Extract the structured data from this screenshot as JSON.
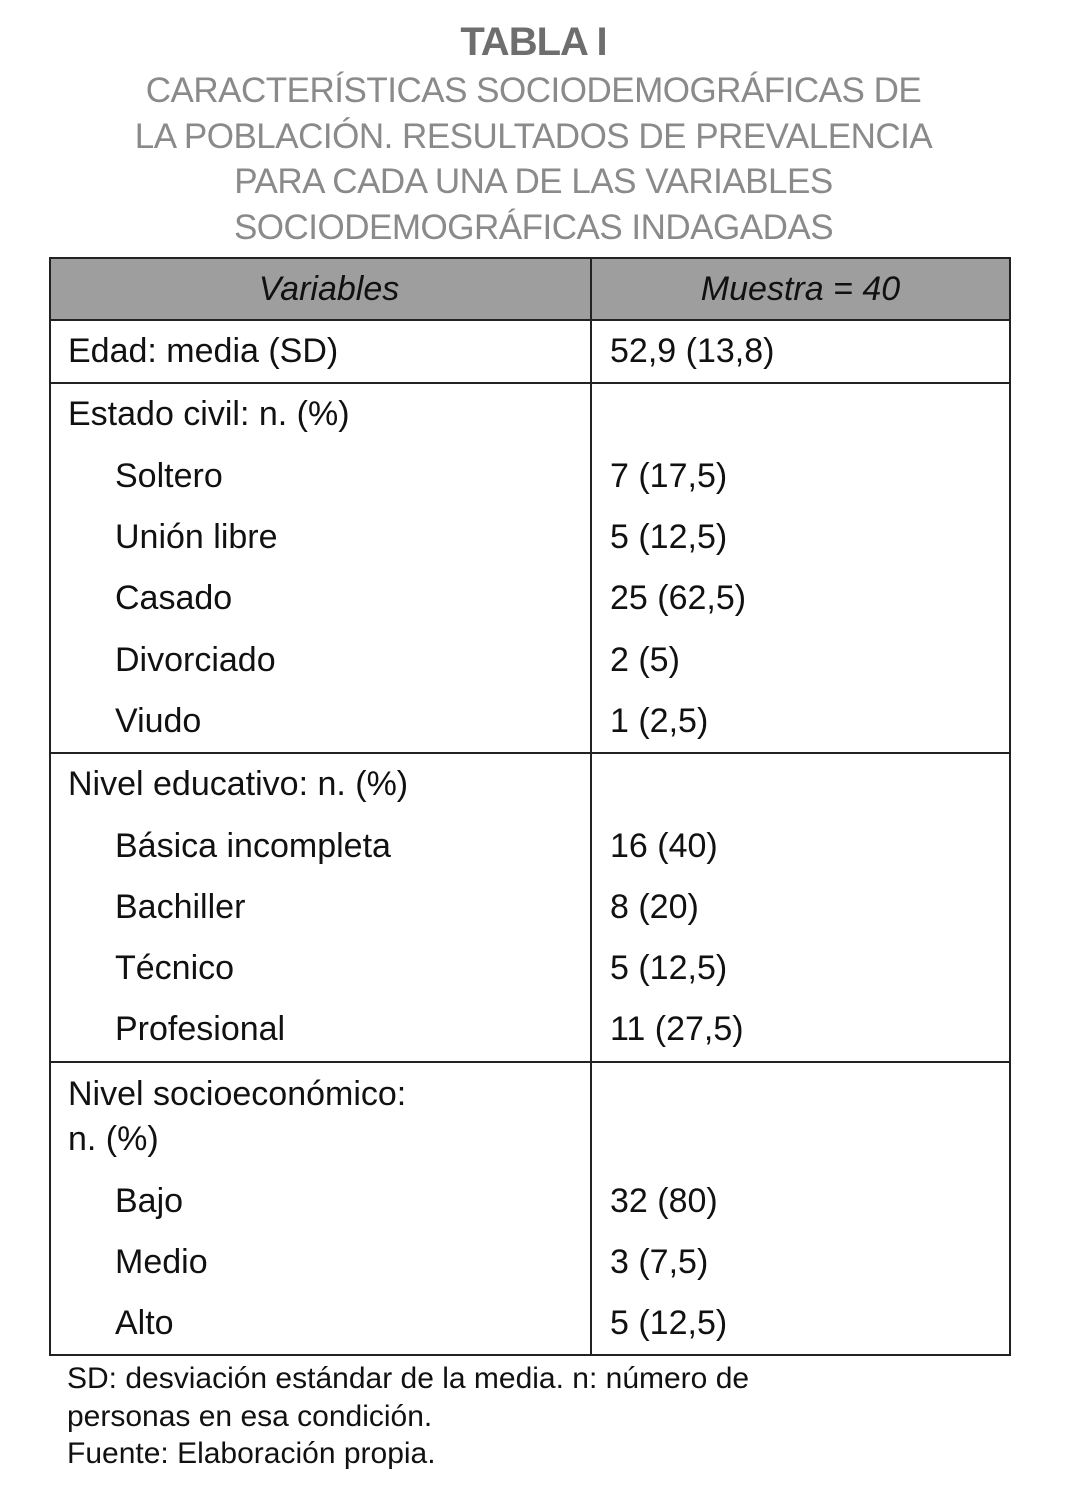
{
  "title": "TABLA I",
  "subtitle_lines": [
    "CARACTERÍSTICAS SOCIODEMOGRÁFICAS DE",
    "LA POBLACIÓN. RESULTADOS DE PREVALENCIA",
    "PARA CADA UNA DE LAS VARIABLES",
    "SOCIODEMOGRÁFICAS INDAGADAS"
  ],
  "table": {
    "headers": [
      "Variables",
      "Muestra = 40"
    ],
    "header_fill": "#9e9e9e",
    "edad": {
      "label": "Edad: media (SD)",
      "value": "52,9 (13,8)"
    },
    "estado_civil": {
      "label": "Estado civil: n. (%)",
      "rows": [
        {
          "label": "Soltero",
          "value": "7 (17,5)"
        },
        {
          "label": "Unión libre",
          "value": "5 (12,5)"
        },
        {
          "label": "Casado",
          "value": "25 (62,5)"
        },
        {
          "label": "Divorciado",
          "value": "2 (5)"
        },
        {
          "label": "Viudo",
          "value": "1 (2,5)"
        }
      ]
    },
    "nivel_educativo": {
      "label": "Nivel educativo: n. (%)",
      "rows": [
        {
          "label": "Básica incompleta",
          "value": "16 (40)"
        },
        {
          "label": "Bachiller",
          "value": "8 (20)"
        },
        {
          "label": "Técnico",
          "value": "5 (12,5)"
        },
        {
          "label": "Profesional",
          "value": "11 (27,5)"
        }
      ]
    },
    "nivel_socioeconomico": {
      "label_lines": [
        "Nivel socioeconómico:",
        "n. (%)"
      ],
      "rows": [
        {
          "label": "Bajo",
          "value": "32 (80)"
        },
        {
          "label": "Medio",
          "value": "3 (7,5)"
        },
        {
          "label": "Alto",
          "value": "5 (12,5)"
        }
      ]
    }
  },
  "footnotes": [
    "SD: desviación estándar de la media. n: número de",
    "personas en esa condición.",
    "Fuente: Elaboración propia."
  ]
}
